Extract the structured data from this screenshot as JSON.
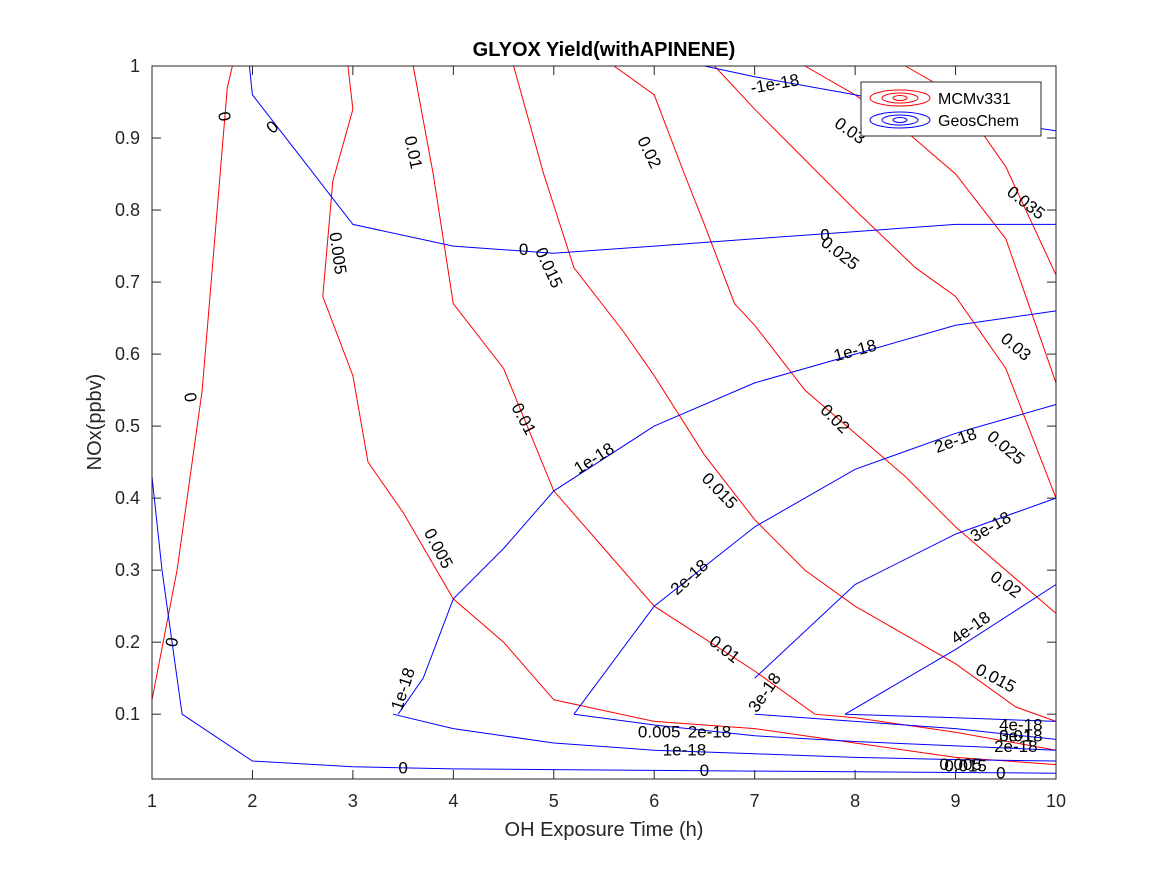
{
  "chart_data": {
    "type": "contour",
    "title": "GLYOX Yield(withAPINENE)",
    "xlabel": "OH Exposure Time (h)",
    "ylabel": "NOx(ppbv)",
    "xlim": [
      1,
      10
    ],
    "ylim": [
      0.01,
      1
    ],
    "xticks": [
      "1",
      "2",
      "3",
      "4",
      "5",
      "6",
      "7",
      "8",
      "9",
      "10"
    ],
    "yticks": [
      "0.1",
      "0.2",
      "0.3",
      "0.4",
      "0.5",
      "0.6",
      "0.7",
      "0.8",
      "0.9",
      "1"
    ],
    "legend": {
      "position": "top-right",
      "entries": [
        {
          "name": "MCMv331",
          "color": "#ff0000"
        },
        {
          "name": "GeosChem",
          "color": "#0000ff"
        }
      ]
    },
    "series": [
      {
        "name": "MCMv331",
        "color": "#ff0000",
        "contours": [
          {
            "level": "0",
            "points": [
              [
                1.0,
                0.12
              ],
              [
                1.25,
                0.3
              ],
              [
                1.5,
                0.55
              ],
              [
                1.75,
                0.97
              ],
              [
                1.8,
                1.0
              ]
            ]
          },
          {
            "level": "0.005",
            "points": [
              [
                2.95,
                1.0
              ],
              [
                3.0,
                0.94
              ],
              [
                2.8,
                0.84
              ],
              [
                2.7,
                0.68
              ],
              [
                3.0,
                0.57
              ],
              [
                3.15,
                0.45
              ],
              [
                3.5,
                0.38
              ],
              [
                4.0,
                0.26
              ],
              [
                4.5,
                0.2
              ],
              [
                5.0,
                0.12
              ],
              [
                6.0,
                0.09
              ],
              [
                7.0,
                0.08
              ],
              [
                8.0,
                0.06
              ],
              [
                9.0,
                0.04
              ],
              [
                10.0,
                0.03
              ]
            ]
          },
          {
            "level": "0.01",
            "points": [
              [
                3.6,
                1.0
              ],
              [
                3.8,
                0.85
              ],
              [
                4.0,
                0.67
              ],
              [
                4.5,
                0.58
              ],
              [
                5.0,
                0.41
              ],
              [
                5.5,
                0.33
              ],
              [
                6.0,
                0.25
              ],
              [
                7.0,
                0.16
              ],
              [
                7.6,
                0.1
              ],
              [
                8.0,
                0.095
              ],
              [
                9.0,
                0.075
              ],
              [
                10.0,
                0.05
              ]
            ]
          },
          {
            "level": "0.015",
            "points": [
              [
                4.6,
                1.0
              ],
              [
                4.9,
                0.85
              ],
              [
                5.2,
                0.72
              ],
              [
                5.7,
                0.63
              ],
              [
                6.0,
                0.57
              ],
              [
                6.5,
                0.46
              ],
              [
                7.0,
                0.37
              ],
              [
                7.5,
                0.3
              ],
              [
                8.0,
                0.25
              ],
              [
                9.0,
                0.17
              ],
              [
                9.6,
                0.11
              ],
              [
                10.0,
                0.09
              ]
            ]
          },
          {
            "level": "0.02",
            "points": [
              [
                5.6,
                1.0
              ],
              [
                6.0,
                0.96
              ],
              [
                6.3,
                0.85
              ],
              [
                6.5,
                0.78
              ],
              [
                6.8,
                0.67
              ],
              [
                7.0,
                0.64
              ],
              [
                7.5,
                0.55
              ],
              [
                8.0,
                0.49
              ],
              [
                8.5,
                0.43
              ],
              [
                9.0,
                0.36
              ],
              [
                10.0,
                0.24
              ]
            ]
          },
          {
            "level": "0.025",
            "points": [
              [
                6.6,
                1.0
              ],
              [
                7.0,
                0.94
              ],
              [
                7.5,
                0.87
              ],
              [
                8.0,
                0.8
              ],
              [
                8.6,
                0.72
              ],
              [
                9.0,
                0.68
              ],
              [
                9.5,
                0.58
              ],
              [
                10.0,
                0.4
              ]
            ]
          },
          {
            "level": "0.03",
            "points": [
              [
                7.5,
                1.0
              ],
              [
                8.0,
                0.96
              ],
              [
                8.5,
                0.91
              ],
              [
                9.0,
                0.85
              ],
              [
                9.5,
                0.76
              ],
              [
                10.0,
                0.56
              ]
            ]
          },
          {
            "level": "0.035",
            "points": [
              [
                8.5,
                1.0
              ],
              [
                9.0,
                0.96
              ],
              [
                9.5,
                0.86
              ],
              [
                10.0,
                0.71
              ]
            ]
          }
        ]
      },
      {
        "name": "GeosChem",
        "color": "#0000ff",
        "contours": [
          {
            "level": "0",
            "points": [
              [
                1.0,
                0.43
              ],
              [
                1.1,
                0.3
              ],
              [
                1.3,
                0.1
              ],
              [
                2.0,
                0.035
              ],
              [
                3.0,
                0.027
              ],
              [
                4.0,
                0.024
              ],
              [
                5.0,
                0.023
              ],
              [
                6.0,
                0.022
              ],
              [
                7.0,
                0.021
              ],
              [
                8.0,
                0.02
              ],
              [
                9.0,
                0.019
              ],
              [
                10.0,
                0.018
              ]
            ]
          },
          {
            "level": "0",
            "points": [
              [
                1.97,
                1.0
              ],
              [
                2.0,
                0.96
              ],
              [
                2.5,
                0.87
              ],
              [
                3.0,
                0.78
              ],
              [
                4.0,
                0.75
              ],
              [
                5.0,
                0.74
              ],
              [
                6.0,
                0.75
              ],
              [
                7.0,
                0.76
              ],
              [
                8.0,
                0.77
              ],
              [
                9.0,
                0.78
              ],
              [
                10.0,
                0.78
              ]
            ]
          },
          {
            "level": "-1e-18",
            "points": [
              [
                6.5,
                1.0
              ],
              [
                7.0,
                0.985
              ],
              [
                8.0,
                0.96
              ],
              [
                9.0,
                0.93
              ],
              [
                10.0,
                0.91
              ]
            ]
          },
          {
            "level": "1e-18",
            "points": [
              [
                3.45,
                0.1
              ],
              [
                3.7,
                0.15
              ],
              [
                4.0,
                0.26
              ],
              [
                4.5,
                0.33
              ],
              [
                5.0,
                0.41
              ],
              [
                6.0,
                0.5
              ],
              [
                7.0,
                0.56
              ],
              [
                8.0,
                0.6
              ],
              [
                9.0,
                0.64
              ],
              [
                10.0,
                0.66
              ]
            ]
          },
          {
            "level": "1e-18",
            "points": [
              [
                3.4,
                0.1
              ],
              [
                4.0,
                0.08
              ],
              [
                5.0,
                0.06
              ],
              [
                6.0,
                0.05
              ],
              [
                7.0,
                0.045
              ],
              [
                8.0,
                0.04
              ],
              [
                9.0,
                0.037
              ],
              [
                10.0,
                0.035
              ]
            ]
          },
          {
            "level": "2e-18",
            "points": [
              [
                5.2,
                0.1
              ],
              [
                6.0,
                0.25
              ],
              [
                7.0,
                0.36
              ],
              [
                8.0,
                0.44
              ],
              [
                9.0,
                0.49
              ],
              [
                10.0,
                0.53
              ]
            ]
          },
          {
            "level": "2e-18",
            "points": [
              [
                5.2,
                0.1
              ],
              [
                6.0,
                0.085
              ],
              [
                7.0,
                0.07
              ],
              [
                8.0,
                0.062
              ],
              [
                9.0,
                0.056
              ],
              [
                10.0,
                0.05
              ]
            ]
          },
          {
            "level": "3e-18",
            "points": [
              [
                7.0,
                0.15
              ],
              [
                8.0,
                0.28
              ],
              [
                9.0,
                0.35
              ],
              [
                10.0,
                0.4
              ]
            ]
          },
          {
            "level": "3e-18",
            "points": [
              [
                7.0,
                0.1
              ],
              [
                8.0,
                0.09
              ],
              [
                9.0,
                0.08
              ],
              [
                10.0,
                0.065
              ]
            ]
          },
          {
            "level": "4e-18",
            "points": [
              [
                7.9,
                0.1
              ],
              [
                9.0,
                0.19
              ],
              [
                10.0,
                0.28
              ]
            ]
          },
          {
            "level": "4e-18",
            "points": [
              [
                7.9,
                0.1
              ],
              [
                9.0,
                0.095
              ],
              [
                10.0,
                0.09
              ]
            ]
          }
        ]
      }
    ],
    "contour_labels": [
      {
        "text": "0",
        "color": "red",
        "x": 1.72,
        "y": 0.93,
        "angle": 80
      },
      {
        "text": "0",
        "color": "red",
        "x": 1.38,
        "y": 0.54,
        "angle": 82
      },
      {
        "text": "0.005",
        "color": "red",
        "x": 2.85,
        "y": 0.74,
        "angle": 82
      },
      {
        "text": "0.005",
        "color": "red",
        "x": 3.85,
        "y": 0.33,
        "angle": 62
      },
      {
        "text": "0.01",
        "color": "red",
        "x": 3.6,
        "y": 0.88,
        "angle": 78
      },
      {
        "text": "0.01",
        "color": "red",
        "x": 4.7,
        "y": 0.51,
        "angle": 62
      },
      {
        "text": "0.01",
        "color": "red",
        "x": 6.7,
        "y": 0.19,
        "angle": 38
      },
      {
        "text": "0.015",
        "color": "red",
        "x": 4.95,
        "y": 0.72,
        "angle": 65
      },
      {
        "text": "0.015",
        "color": "red",
        "x": 6.65,
        "y": 0.41,
        "angle": 46
      },
      {
        "text": "0.015",
        "color": "red",
        "x": 9.4,
        "y": 0.15,
        "angle": 28
      },
      {
        "text": "0.02",
        "color": "red",
        "x": 5.95,
        "y": 0.88,
        "angle": 64
      },
      {
        "text": "0.02",
        "color": "red",
        "x": 7.8,
        "y": 0.51,
        "angle": 45
      },
      {
        "text": "0.02",
        "color": "red",
        "x": 9.5,
        "y": 0.28,
        "angle": 36
      },
      {
        "text": "0.025",
        "color": "red",
        "x": 7.85,
        "y": 0.74,
        "angle": 38
      },
      {
        "text": "0.025",
        "color": "red",
        "x": 9.5,
        "y": 0.47,
        "angle": 40
      },
      {
        "text": "0.03",
        "color": "red",
        "x": 7.95,
        "y": 0.91,
        "angle": 35
      },
      {
        "text": "0.03",
        "color": "red",
        "x": 9.6,
        "y": 0.61,
        "angle": 40
      },
      {
        "text": "0.035",
        "color": "red",
        "x": 9.7,
        "y": 0.81,
        "angle": 38
      },
      {
        "text": "0",
        "color": "blue",
        "x": 2.2,
        "y": 0.915,
        "angle": -42
      },
      {
        "text": "0",
        "color": "blue",
        "x": 1.2,
        "y": 0.2,
        "angle": -82
      },
      {
        "text": "0",
        "color": "blue",
        "x": 3.5,
        "y": 0.025,
        "angle": 0
      },
      {
        "text": "0",
        "color": "blue",
        "x": 6.5,
        "y": 0.022,
        "angle": 0
      },
      {
        "text": "0",
        "color": "blue",
        "x": 4.7,
        "y": 0.745,
        "angle": 0
      },
      {
        "text": "0",
        "color": "blue",
        "x": 7.7,
        "y": 0.765,
        "angle": 0
      },
      {
        "text": "-1e-18",
        "color": "blue",
        "x": 7.2,
        "y": 0.975,
        "angle": -10
      },
      {
        "text": "1e-18",
        "color": "blue",
        "x": 5.4,
        "y": 0.455,
        "angle": -32
      },
      {
        "text": "1e-18",
        "color": "blue",
        "x": 8.0,
        "y": 0.605,
        "angle": -15
      },
      {
        "text": "1e-18",
        "color": "blue",
        "x": 3.5,
        "y": 0.135,
        "angle": -72
      },
      {
        "text": "1e-18",
        "color": "blue",
        "x": 6.3,
        "y": 0.05,
        "angle": 0
      },
      {
        "text": "2e-18",
        "color": "blue",
        "x": 6.35,
        "y": 0.29,
        "angle": -42
      },
      {
        "text": "2e-18",
        "color": "blue",
        "x": 9.0,
        "y": 0.48,
        "angle": -20
      },
      {
        "text": "2e-18",
        "color": "blue",
        "x": 6.55,
        "y": 0.075,
        "angle": 0
      },
      {
        "text": "2e-18",
        "color": "blue",
        "x": 9.6,
        "y": 0.055,
        "angle": 0
      },
      {
        "text": "3e-18",
        "color": "blue",
        "x": 7.1,
        "y": 0.13,
        "angle": -55
      },
      {
        "text": "3e-18",
        "color": "blue",
        "x": 9.35,
        "y": 0.36,
        "angle": -30
      },
      {
        "text": "3e-18",
        "color": "blue",
        "x": 9.65,
        "y": 0.07,
        "angle": 0
      },
      {
        "text": "4e-18",
        "color": "blue",
        "x": 9.15,
        "y": 0.22,
        "angle": -35
      },
      {
        "text": "4e-18",
        "color": "blue",
        "x": 9.65,
        "y": 0.085,
        "angle": 0
      },
      {
        "text": "0.005",
        "color": "red",
        "x": 6.05,
        "y": 0.075,
        "angle": 0
      },
      {
        "text": "0.01",
        "color": "red",
        "x": 9.6,
        "y": 0.07,
        "angle": 0
      },
      {
        "text": "0.005",
        "color": "red",
        "x": 9.05,
        "y": 0.03,
        "angle": 0
      },
      {
        "text": "0.015",
        "color": "red",
        "x": 9.1,
        "y": 0.028,
        "angle": 0
      },
      {
        "text": "0",
        "color": "blue",
        "x": 9.45,
        "y": 0.018,
        "angle": 0
      }
    ]
  }
}
